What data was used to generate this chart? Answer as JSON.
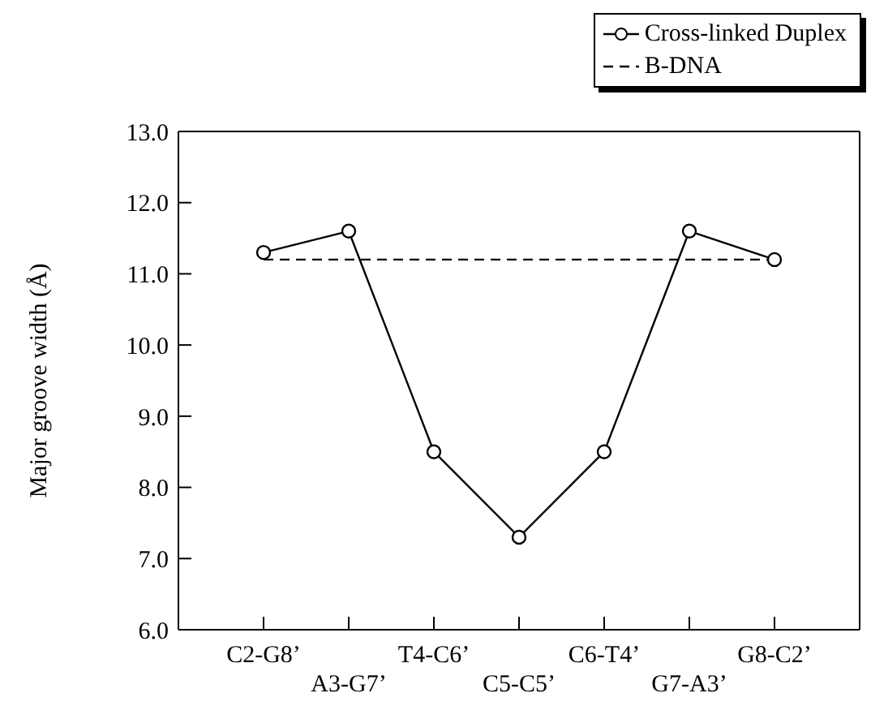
{
  "chart_data": {
    "type": "line",
    "ylabel": "Major groove width (Å)",
    "categories": [
      "C2-G8’",
      "A3-G7’",
      "T4-C6’",
      "C5-C5’",
      "C6-T4’",
      "G7-A3’",
      "G8-C2’"
    ],
    "series": [
      {
        "name": "Cross-linked Duplex",
        "color": "#000000",
        "marker": "circle",
        "line_style": "solid",
        "values": [
          11.3,
          11.6,
          8.5,
          7.3,
          8.5,
          11.6,
          11.2
        ]
      },
      {
        "name": "B-DNA",
        "color": "#000000",
        "marker": "none",
        "line_style": "dashed",
        "values": [
          11.2,
          11.2,
          11.2,
          11.2,
          11.2,
          11.2,
          11.2
        ]
      }
    ],
    "ylim": [
      6,
      13
    ],
    "yticks": [
      {
        "value": 6,
        "label": "6.0"
      },
      {
        "value": 7,
        "label": "7.0"
      },
      {
        "value": 8,
        "label": "8.0"
      },
      {
        "value": 9,
        "label": "9.0"
      },
      {
        "value": 10,
        "label": "10.0"
      },
      {
        "value": 11,
        "label": "11.0"
      },
      {
        "value": 12,
        "label": "12.0"
      },
      {
        "value": 13,
        "label": "13.0"
      }
    ],
    "grid": false,
    "legend": "top right"
  }
}
